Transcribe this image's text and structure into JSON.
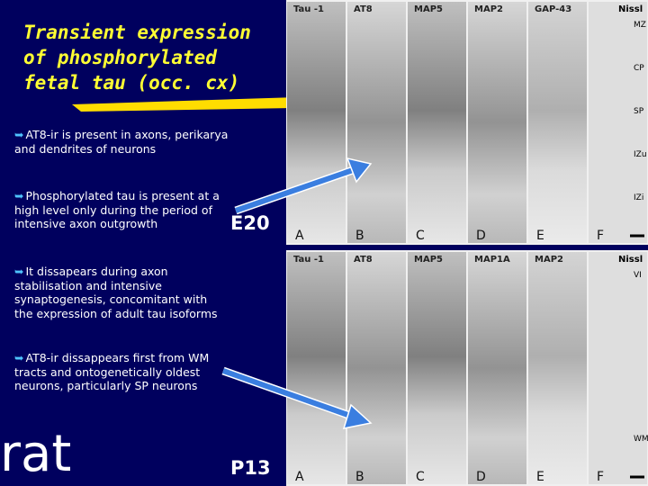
{
  "slide": {
    "title_lines": [
      "Transient expression",
      "of phosphorylated",
      "fetal tau (occ. cx)"
    ],
    "bullets": [
      "AT8-ir is present in axons, perikarya and dendrites of neurons",
      "Phosphorylated tau is present at a high level only during the period of intensive axon outgrowth",
      "It dissapears during axon stabilisation and intensive synaptogenesis, concomitant with the expression of adult tau isoforms",
      "AT8-ir dissappears first from WM tracts and ontogenetically oldest neurons, particularly SP neurons"
    ],
    "species": "rat",
    "panels": [
      {
        "age": "E20",
        "columns": [
          "Tau -1",
          "AT8",
          "MAP5",
          "MAP2",
          "GAP-43",
          "Nissl"
        ],
        "letters": [
          "A",
          "B",
          "C",
          "D",
          "E",
          "F"
        ],
        "layers": [
          "MZ",
          "CP",
          "SP",
          "IZu",
          "IZi"
        ]
      },
      {
        "age": "P13",
        "columns": [
          "Tau -1",
          "AT8",
          "MAP5",
          "MAP1A",
          "MAP2",
          "Nissl"
        ],
        "letters": [
          "A",
          "B",
          "C",
          "D",
          "E",
          "F"
        ],
        "layers": [
          "VI",
          "WM"
        ]
      }
    ]
  }
}
